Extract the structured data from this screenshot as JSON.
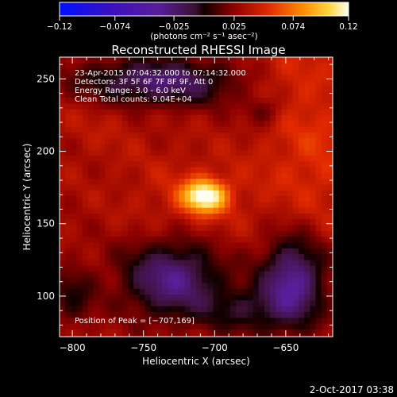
{
  "chart_data": {
    "type": "heatmap",
    "title": "Reconstructed RHESSI Image",
    "xlabel": "Heliocentric X (arcsec)",
    "ylabel": "Heliocentric Y (arcsec)",
    "xlim": [
      -809,
      -617
    ],
    "ylim": [
      72,
      265
    ],
    "x_ticks": [
      -800,
      -750,
      -700,
      -650
    ],
    "x_tick_labels": [
      "−800",
      "−750",
      "−700",
      "−650"
    ],
    "y_ticks": [
      100,
      150,
      200,
      250
    ],
    "y_tick_labels": [
      "100",
      "150",
      "200",
      "250"
    ],
    "colorbar": {
      "range": [
        -0.12,
        0.12
      ],
      "ticks": [
        -0.12,
        -0.074,
        -0.025,
        0.025,
        0.074,
        0.12
      ],
      "tick_labels": [
        "−0.12",
        "−0.074",
        "−0.025",
        "0.025",
        "0.074",
        "0.12"
      ],
      "unit_label": "(photons cm⁻² s⁻¹ asec⁻²)"
    },
    "info_lines": [
      "23-Apr-2015 07:04:32.000 to 07:14:32.000",
      "Detectors: 3F 5F 6F 7F 8F 9F, Att 0",
      "Energy Range: 3.0 - 6.0 keV",
      "Clean     Total counts: 9.04E+04"
    ],
    "peak_label": "Position of Peak = [−707,169]",
    "peak": [
      -707,
      169
    ],
    "peak_value": 0.12,
    "footer_date": "2-Oct-2017 03:38"
  }
}
